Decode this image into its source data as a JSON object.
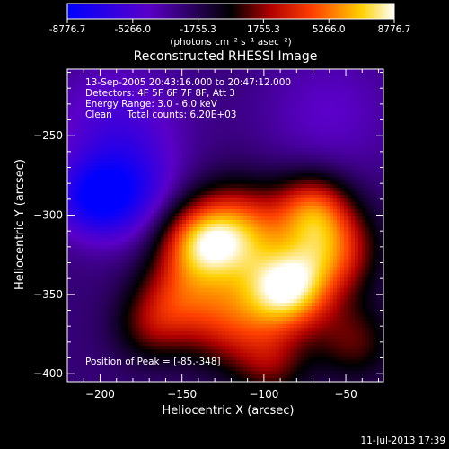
{
  "chart_data": {
    "type": "heatmap",
    "title": "Reconstructed RHESSI Image",
    "xlabel": "Heliocentric X (arcsec)",
    "ylabel": "Heliocentric Y (arcsec)",
    "xlim": [
      -220,
      -27
    ],
    "ylim": [
      -405,
      -208
    ],
    "x_ticks": [
      -200,
      -150,
      -100,
      -50
    ],
    "y_ticks": [
      -250,
      -300,
      -350,
      -400
    ],
    "colorbar": {
      "ticks": [
        "-8776.7",
        "-5266.0",
        "-1755.3",
        "1755.3",
        "5266.0",
        "8776.7"
      ],
      "unit_text": "(photons cm⁻² s⁻¹ asec⁻²)",
      "range": [
        -8776.7,
        8776.7
      ]
    },
    "annotations": {
      "line1": "13-Sep-2005 20:43:16.000 to 20:47:12.000",
      "line2": "Detectors: 4F 5F 6F 7F 8F, Att 3",
      "line3": "Energy Range: 3.0 - 6.0 keV",
      "line4": "Clean     Total counts: 6.20E+03",
      "peak": "Position of Peak = [-85,-348]"
    },
    "peak_position": [
      -85,
      -348
    ],
    "sources": [
      {
        "x": -85,
        "y": -348,
        "amp": 8776.7,
        "sigma": 18
      },
      {
        "x": -115,
        "y": -312,
        "amp": 7400,
        "sigma": 22
      },
      {
        "x": -140,
        "y": -318,
        "amp": 6500,
        "sigma": 18
      },
      {
        "x": -60,
        "y": -322,
        "amp": 6800,
        "sigma": 20
      },
      {
        "x": -70,
        "y": -295,
        "amp": 5400,
        "sigma": 16
      },
      {
        "x": -120,
        "y": -365,
        "amp": 5600,
        "sigma": 22
      },
      {
        "x": -155,
        "y": -352,
        "amp": 4000,
        "sigma": 18
      },
      {
        "x": -170,
        "y": -372,
        "amp": 2800,
        "sigma": 16
      },
      {
        "x": -45,
        "y": -380,
        "amp": 3500,
        "sigma": 18
      },
      {
        "x": -95,
        "y": -395,
        "amp": 3200,
        "sigma": 16
      },
      {
        "x": -185,
        "y": -285,
        "amp": -4200,
        "sigma": 22
      },
      {
        "x": -205,
        "y": -290,
        "amp": -3800,
        "sigma": 16
      },
      {
        "x": -190,
        "y": -240,
        "amp": -2500,
        "sigma": 28
      },
      {
        "x": -60,
        "y": -235,
        "amp": -1800,
        "sigma": 30
      }
    ],
    "background": -2600
  },
  "footer": {
    "date": "11-Jul-2013 17:39"
  }
}
